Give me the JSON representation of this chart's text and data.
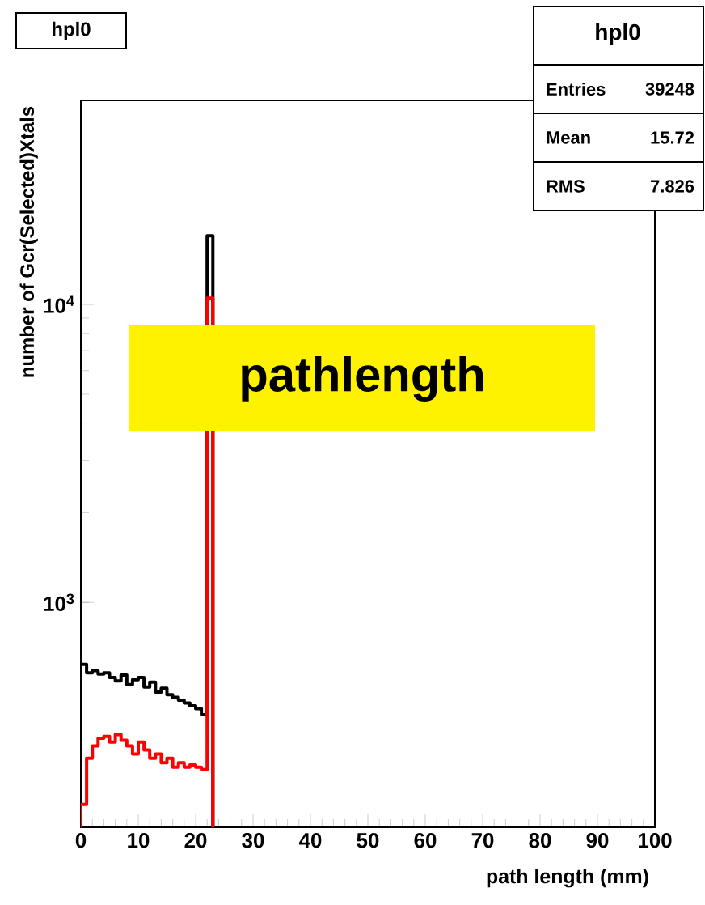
{
  "chart_data": {
    "type": "histogram",
    "title": "hpl0",
    "xlabel": "path length (mm)",
    "ylabel": "number of Gcr(Selected)Xtals",
    "bins": [
      0,
      1,
      2,
      3,
      4,
      5,
      6,
      7,
      8,
      9,
      10,
      11,
      12,
      13,
      14,
      15,
      16,
      17,
      18,
      19,
      20,
      21,
      22,
      23
    ],
    "series": [
      {
        "color": "#000000",
        "values": [
          620,
          580,
          590,
          575,
          580,
          560,
          545,
          570,
          530,
          550,
          560,
          520,
          540,
          500,
          515,
          490,
          480,
          470,
          460,
          450,
          440,
          420,
          17000
        ]
      },
      {
        "color": "#ff0000",
        "values": [
          210,
          300,
          330,
          350,
          355,
          340,
          360,
          345,
          330,
          310,
          340,
          320,
          300,
          310,
          290,
          300,
          280,
          290,
          280,
          285,
          280,
          275,
          10500
        ]
      }
    ],
    "log": "y",
    "xlim": [
      0,
      100
    ],
    "ylim": [
      176,
      48400
    ],
    "xticks": [
      0,
      10,
      20,
      30,
      40,
      50,
      60,
      70,
      80,
      90,
      100
    ],
    "yticks": [
      {
        "value": 1000,
        "label": "10$^{3}$"
      },
      {
        "value": 10000,
        "label": "10$^{4}$"
      }
    ],
    "annotations": [
      "hpl0",
      "Entries",
      "39248",
      "Mean",
      "15.72",
      "RMS",
      "7.826",
      "pathlength"
    ]
  }
}
